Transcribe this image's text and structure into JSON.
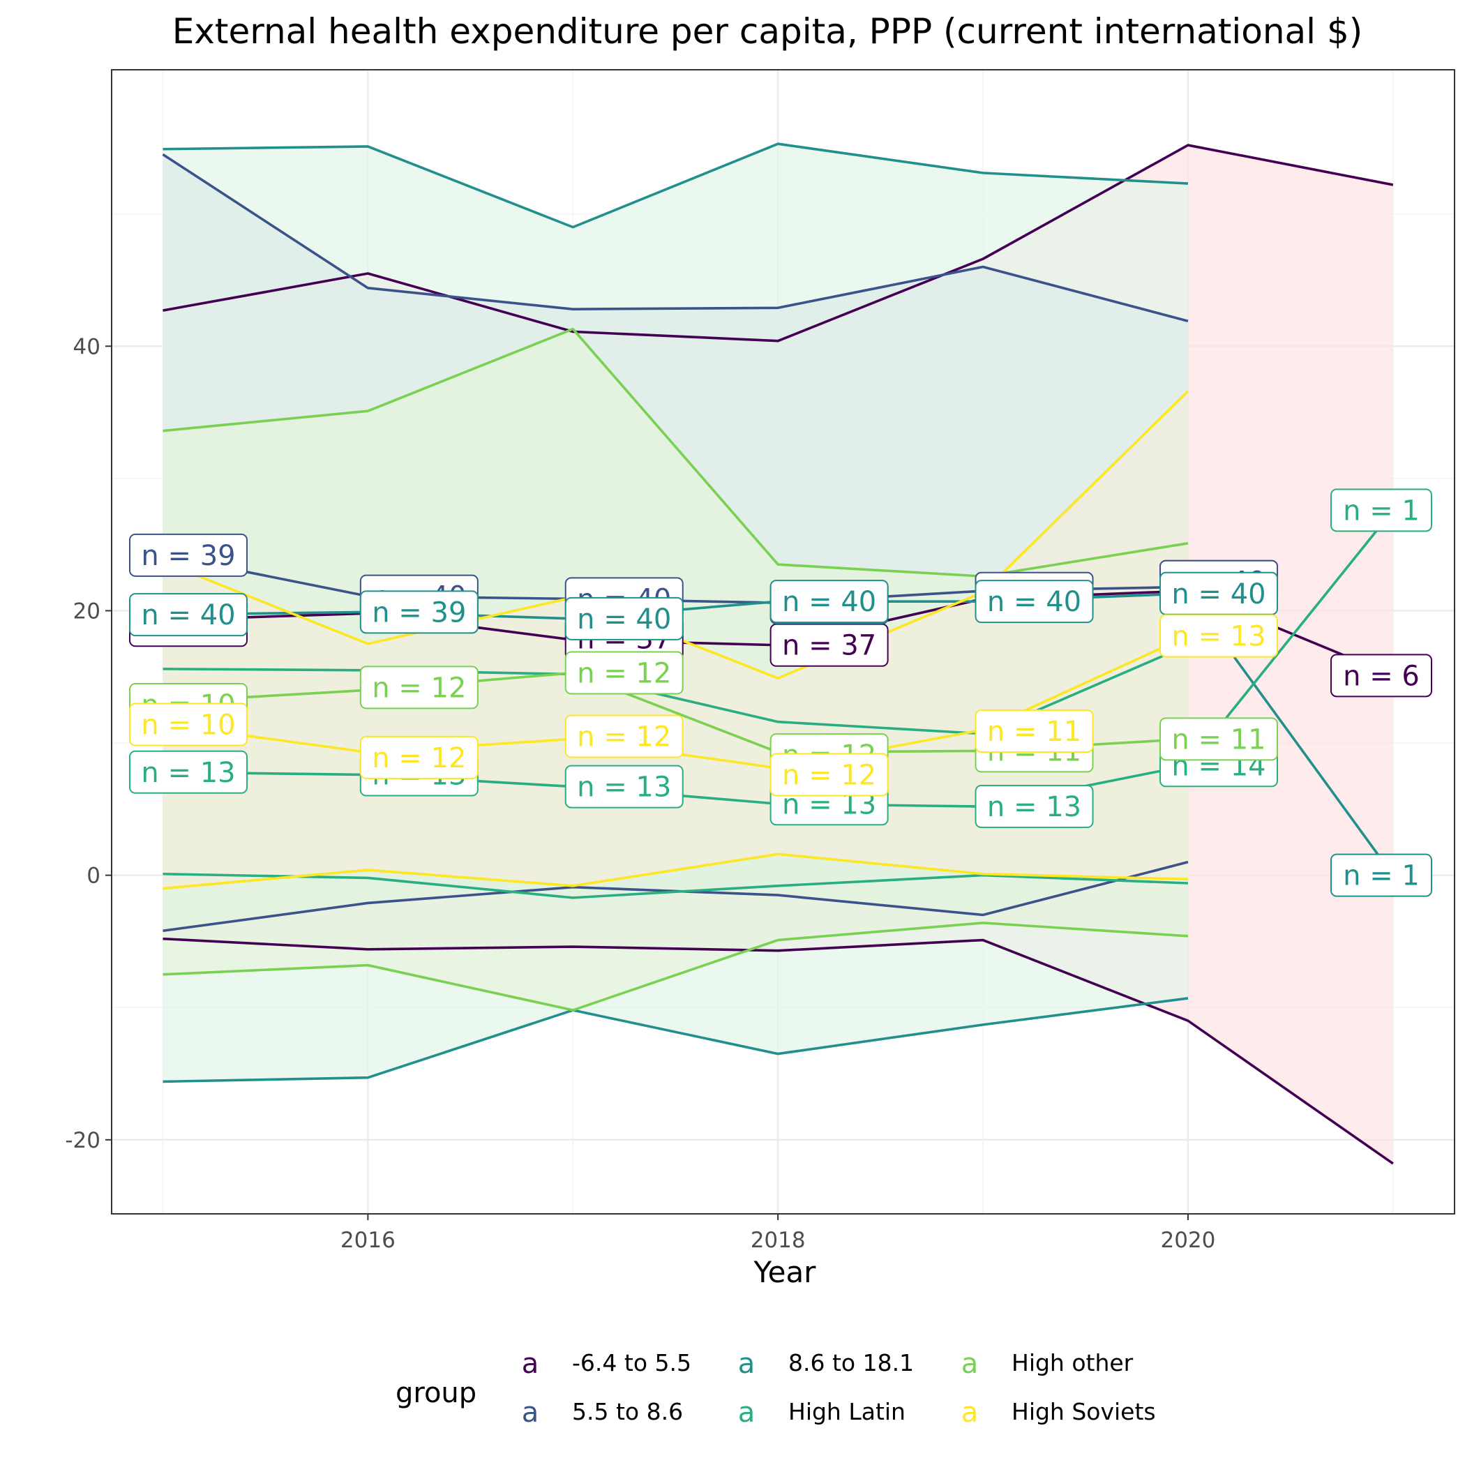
{
  "chart_data": {
    "type": "line",
    "title": "External health expenditure per capita, PPP (current international $)",
    "xlabel": "Year",
    "ylabel": "",
    "xlim": [
      2014.75,
      2021.3
    ],
    "ylim": [
      -25.6,
      60.9
    ],
    "x_ticks": [
      2016,
      2018,
      2020
    ],
    "y_ticks": [
      -20,
      0,
      20,
      40
    ],
    "legend_title": "group",
    "legend_position": "bottom",
    "legend_key_glyph": "a",
    "grid": true,
    "series": [
      {
        "name": "-6.4 to 5.5",
        "color": "#440154",
        "fill": "#FDE2E2",
        "x": [
          2015,
          2016,
          2017,
          2018,
          2019,
          2020,
          2021
        ],
        "mean": [
          19.3,
          19.8,
          17.8,
          17.4,
          20.9,
          21.5,
          15.1
        ],
        "upper": [
          42.7,
          45.5,
          41.1,
          40.4,
          46.6,
          55.2,
          52.2
        ],
        "lower": [
          -4.8,
          -5.6,
          -5.4,
          -5.7,
          -4.9,
          -11.0,
          -21.8
        ],
        "n": [
          37,
          37,
          37,
          37,
          37,
          37,
          6
        ],
        "label_x": [
          2015,
          2017.25,
          2018.25,
          2020.15,
          2021.25
        ],
        "label_y": [
          18.9,
          17.9,
          17.4,
          22.2,
          15.1
        ],
        "label_n": [
          37,
          37,
          37,
          37,
          6
        ]
      },
      {
        "name": "5.5 to 8.6",
        "color": "#3B528B",
        "fill": "#D5D5E4",
        "x": [
          2015,
          2016,
          2017,
          2018,
          2019,
          2020
        ],
        "mean": [
          24.2,
          21.1,
          20.9,
          20.6,
          21.5,
          21.8
        ],
        "upper": [
          54.5,
          44.4,
          42.8,
          42.9,
          46.0,
          41.9
        ],
        "lower": [
          -4.2,
          -2.1,
          -0.9,
          -1.5,
          -3.0,
          1.0
        ],
        "n": [
          39,
          40,
          40,
          40,
          40,
          40
        ],
        "label_x": [
          2015,
          2016.25,
          2017.25,
          2018.25,
          2019.25,
          2020.15
        ],
        "label_y": [
          24.2,
          21.1,
          20.9,
          20.6,
          21.3,
          22.2
        ],
        "label_n": [
          39,
          40,
          40,
          40,
          40,
          40
        ]
      },
      {
        "name": "8.6 to 18.1",
        "color": "#21908C",
        "fill": "#E1F5EA",
        "x": [
          2015,
          2016,
          2017,
          2018,
          2019,
          2020,
          2021
        ],
        "mean": [
          19.7,
          19.9,
          19.4,
          20.7,
          20.7,
          21.3,
          0.0
        ],
        "upper": [
          54.9,
          55.1,
          49.0,
          55.3,
          53.1,
          52.3,
          null
        ],
        "lower": [
          -15.6,
          -15.3,
          -10.2,
          -13.5,
          -11.3,
          -9.3,
          null
        ],
        "n": [
          40,
          39,
          40,
          40,
          40,
          40,
          1
        ],
        "label_x": [
          2015,
          2016.25,
          2017.25,
          2018.25,
          2019.25,
          2020.15,
          2021.25
        ],
        "label_y": [
          19.7,
          19.9,
          19.4,
          20.7,
          20.7,
          21.3,
          0.0
        ],
        "label_n": [
          40,
          39,
          40,
          40,
          40,
          40,
          1
        ]
      },
      {
        "name": "High Latin",
        "color": "#28AE80",
        "fill": "#D9EFEA",
        "x": [
          2015,
          2016,
          2017,
          2018,
          2019,
          2020,
          2021
        ],
        "mean": [
          7.8,
          7.6,
          6.7,
          5.4,
          5.2,
          8.3,
          27.6
        ],
        "upper": [
          15.6,
          15.5,
          15.2,
          11.6,
          10.7,
          17.4,
          null
        ],
        "lower": [
          0.1,
          -0.2,
          -1.7,
          -0.8,
          0.0,
          -0.6,
          null
        ],
        "n": [
          13,
          13,
          13,
          13,
          13,
          14,
          1
        ],
        "label_x": [
          2015,
          2016.25,
          2017.25,
          2018.25,
          2019.25,
          2020.15,
          2021.25
        ],
        "label_y": [
          7.8,
          7.6,
          6.7,
          5.4,
          5.2,
          8.3,
          27.6
        ],
        "label_n": [
          13,
          13,
          13,
          13,
          13,
          14,
          1
        ]
      },
      {
        "name": "High other",
        "color": "#7AD151",
        "fill": "#E5F3DC",
        "x": [
          2015,
          2016,
          2017,
          2018,
          2019,
          2020
        ],
        "mean": [
          13.1,
          14.0,
          15.3,
          9.3,
          9.4,
          10.3
        ],
        "upper": [
          33.6,
          35.1,
          41.3,
          23.5,
          22.6,
          25.1
        ],
        "lower": [
          -7.5,
          -6.8,
          -10.2,
          -4.9,
          -3.6,
          -4.6
        ],
        "n": [
          10,
          12,
          12,
          12,
          11,
          11
        ],
        "label_x": [
          2015,
          2016.25,
          2017.25,
          2018.25,
          2019.25,
          2020.15
        ],
        "label_y": [
          12.9,
          14.2,
          15.3,
          9.1,
          9.4,
          10.3
        ],
        "label_n": [
          10,
          12,
          12,
          12,
          11,
          11
        ]
      },
      {
        "name": "High Soviets",
        "color": "#FDE725",
        "fill": "#F3EEDB",
        "x": [
          2015,
          2016,
          2017,
          2018,
          2019,
          2020
        ],
        "mean": [
          11.4,
          9.3,
          10.3,
          8.1,
          11.0,
          18.1
        ],
        "upper": [
          23.7,
          17.5,
          21.0,
          14.9,
          21.4,
          36.6
        ],
        "lower": [
          -1.0,
          0.4,
          -0.8,
          1.6,
          0.1,
          -0.3
        ],
        "n": [
          10,
          12,
          12,
          12,
          11,
          13
        ],
        "label_x": [
          2015,
          2016.25,
          2017.25,
          2018.25,
          2019.25,
          2020.15
        ],
        "label_y": [
          11.4,
          8.9,
          10.5,
          7.6,
          10.9,
          18.1
        ],
        "label_n": [
          10,
          12,
          12,
          12,
          11,
          13
        ]
      }
    ]
  }
}
